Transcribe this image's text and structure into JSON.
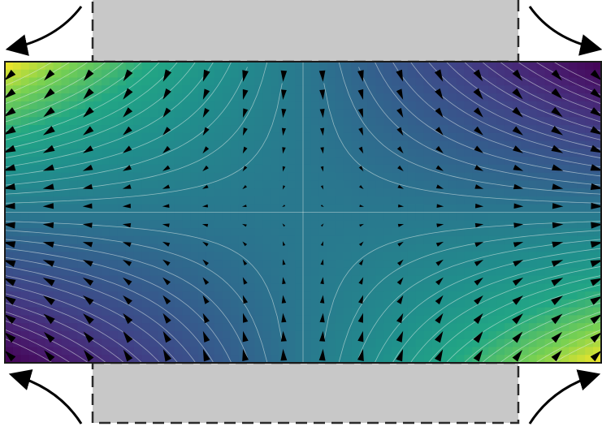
{
  "figure": {
    "colors": {
      "background": "#ffffff",
      "plate_fill": "#c8c8c8",
      "plate_border": "#2a2a2a",
      "field_border": "#1a1a1a",
      "arrow": "#000000",
      "contour": "#e8f0ec",
      "curved_arrow": "#000000"
    },
    "colormap": "viridis",
    "field_extremes": {
      "top_left": "max",
      "top_right": "min",
      "bottom_left": "min",
      "bottom_right": "max"
    },
    "top_plate": {
      "name": "gray-plate",
      "border_style": "dashed"
    },
    "bottom_plate": {
      "name": "gray-plate",
      "border_style": "dashed"
    },
    "curved_arrows": [
      {
        "name": "top-left-arrow",
        "direction": "outward"
      },
      {
        "name": "top-right-arrow",
        "direction": "outward"
      },
      {
        "name": "bottom-left-arrow",
        "direction": "outward"
      },
      {
        "name": "bottom-right-arrow",
        "direction": "outward"
      }
    ],
    "vector_field": {
      "type": "saddle-point flow",
      "grid_columns": 16,
      "grid_rows": 16,
      "arrow_style": "filled-triangle"
    }
  }
}
